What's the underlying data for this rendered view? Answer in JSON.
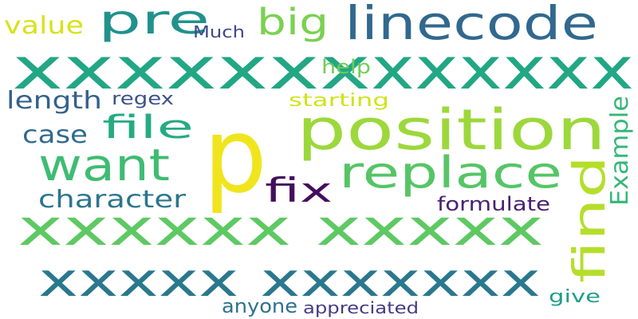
{
  "words": [
    {
      "text": "xxxxxxx",
      "color": "#22a785"
    },
    {
      "text": "xxxxxx",
      "color": "#22a785"
    },
    {
      "text": "p",
      "color": "#f0e51d"
    },
    {
      "text": "position",
      "color": "#9cd83b"
    },
    {
      "text": "replace",
      "color": "#56c566"
    },
    {
      "text": "xxxxxx xxxxx",
      "color": "#5ec962"
    },
    {
      "text": "xxxxx xxxxxxx",
      "color": "#2a788e"
    },
    {
      "text": "linecode",
      "color": "#31688e"
    },
    {
      "text": "want",
      "color": "#3fbc73"
    },
    {
      "text": "find",
      "color": "#b5de2b"
    },
    {
      "text": "pre",
      "color": "#21918c"
    },
    {
      "text": "big",
      "color": "#7ad151"
    },
    {
      "text": "file",
      "color": "#25ab82"
    },
    {
      "text": "fix",
      "color": "#440f5e"
    },
    {
      "text": "length",
      "color": "#34618d"
    },
    {
      "text": "case",
      "color": "#306a8e"
    },
    {
      "text": "character",
      "color": "#2b758e"
    },
    {
      "text": "value",
      "color": "#d8e219"
    },
    {
      "text": "Example",
      "color": "#35b779"
    },
    {
      "text": "regex",
      "color": "#3b528b"
    },
    {
      "text": "formulate",
      "color": "#482173"
    },
    {
      "text": "starting",
      "color": "#d2e21b"
    },
    {
      "text": "help",
      "color": "#6ece58"
    },
    {
      "text": "Much",
      "color": "#3e4989"
    },
    {
      "text": "anyone",
      "color": "#2c728e"
    },
    {
      "text": "appreciated",
      "color": "#443a83"
    },
    {
      "text": "give",
      "color": "#1f9e89"
    }
  ]
}
